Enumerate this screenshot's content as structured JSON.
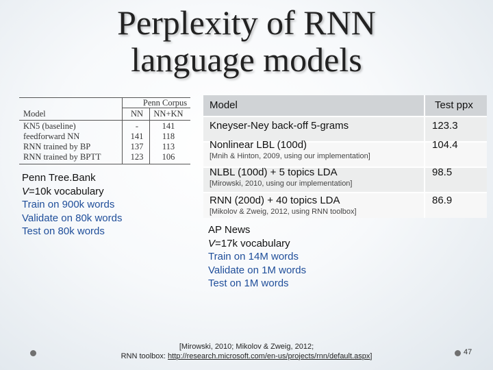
{
  "title": {
    "line1": "Perplexity of RNN",
    "line2": "language models"
  },
  "penn_table": {
    "group_header": "Penn Corpus",
    "col_model": "Model",
    "col_nn": "NN",
    "col_nnkn": "NN+KN",
    "rows": [
      {
        "model": "KN5 (baseline)",
        "nn": "-",
        "nnkn": "141"
      },
      {
        "model": "feedforward NN",
        "nn": "141",
        "nnkn": "118"
      },
      {
        "model": "RNN trained by BP",
        "nn": "137",
        "nnkn": "113"
      },
      {
        "model": "RNN trained by BPTT",
        "nn": "123",
        "nnkn": "106"
      }
    ]
  },
  "penn": {
    "name": "Penn Tree.Bank",
    "vocab_var": "V",
    "vocab_rest": "=10k vocabulary",
    "train": "Train on 900k words",
    "validate": "Validate on 80k words",
    "test": "Test on 80k words"
  },
  "main_table": {
    "col_model": "Model",
    "col_ppx": "Test ppx",
    "rows": [
      {
        "model": "Kneyser-Ney back-off 5-grams",
        "ppx": "123.3",
        "note": ""
      },
      {
        "model": "Nonlinear LBL (100d)",
        "ppx": "104.4",
        "note": "[Mnih & Hinton, 2009, using our implementation]"
      },
      {
        "model": "NLBL (100d) + 5 topics LDA",
        "ppx": "98.5",
        "note": "[Mirowski, 2010, using our implementation]"
      },
      {
        "model": "RNN (200d) + 40 topics LDA",
        "ppx": "86.9",
        "note": "[Mikolov & Zweig, 2012, using RNN toolbox]"
      }
    ]
  },
  "ap": {
    "name": "AP News",
    "vocab_var": "V",
    "vocab_rest": "=17k vocabulary",
    "train": "Train on 14M words",
    "validate": "Validate on 1M words",
    "test": "Test on 1M words"
  },
  "footer": {
    "line1": "[Mirowski, 2010; Mikolov & Zweig, 2012;",
    "line2_prefix": "RNN toolbox: ",
    "url": "http://research.microsoft.com/en-us/projects/rnn/default.aspx",
    "line2_suffix": "]"
  },
  "page_number": "47"
}
